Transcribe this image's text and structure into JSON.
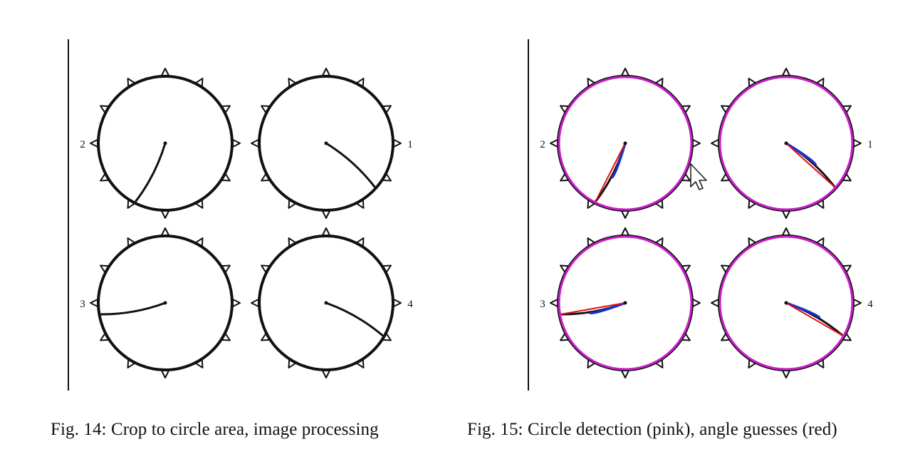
{
  "figures": [
    {
      "id": "fig14",
      "caption": "Fig. 14: Crop to circle area, image processing",
      "overlay": false,
      "dials": [
        {
          "label": "2",
          "label_side": "left",
          "needle_deg": 243
        },
        {
          "label": "1",
          "label_side": "right",
          "needle_deg": 318
        },
        {
          "label": "3",
          "label_side": "left",
          "needle_deg": 190
        },
        {
          "label": "4",
          "label_side": "right",
          "needle_deg": 330
        }
      ]
    },
    {
      "id": "fig15",
      "caption": "Fig. 15: Circle detection (pink), angle guesses (red)",
      "overlay": true,
      "dials": [
        {
          "label": "2",
          "label_side": "left",
          "needle_deg": 243
        },
        {
          "label": "1",
          "label_side": "right",
          "needle_deg": 318
        },
        {
          "label": "3",
          "label_side": "left",
          "needle_deg": 190
        },
        {
          "label": "4",
          "label_side": "right",
          "needle_deg": 330
        }
      ]
    }
  ],
  "colors": {
    "ink": "#111111",
    "circle_detection": "#c81ec8",
    "angle_guess": "#e01010",
    "needle_trace": "#1a2fd0"
  },
  "cursor_icon": "mouse-pointer-icon"
}
